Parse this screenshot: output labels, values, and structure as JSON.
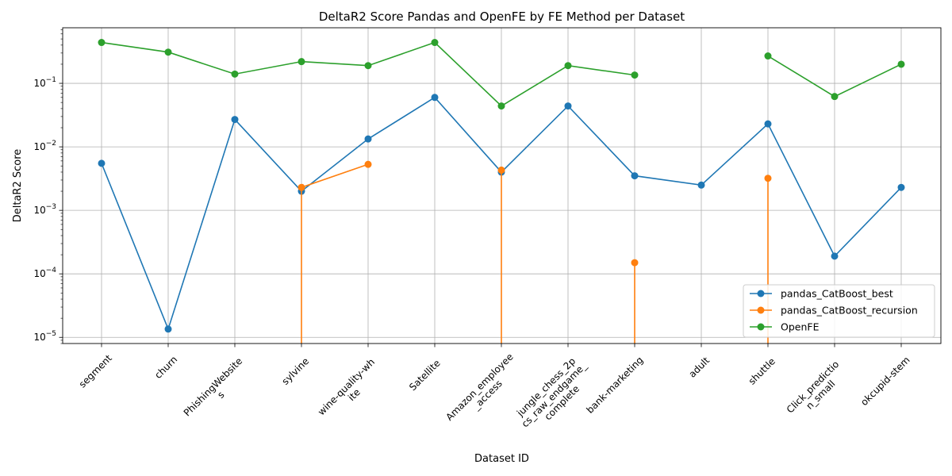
{
  "chart_data": {
    "type": "line",
    "title": "DeltaR2 Score Pandas and OpenFE by FE Method per Dataset",
    "xlabel": "Dataset ID",
    "ylabel": "DeltaR2 Score",
    "yscale": "log",
    "ylim": [
      8e-06,
      0.75
    ],
    "y_ticks": [
      {
        "value": 1e-05,
        "mantissa": "10",
        "exp": "−5"
      },
      {
        "value": 0.0001,
        "mantissa": "10",
        "exp": "−4"
      },
      {
        "value": 0.001,
        "mantissa": "10",
        "exp": "−3"
      },
      {
        "value": 0.01,
        "mantissa": "10",
        "exp": "−2"
      },
      {
        "value": 0.1,
        "mantissa": "10",
        "exp": "−1"
      }
    ],
    "grid": true,
    "legend_position": "lower-right",
    "categories": [
      [
        "segment"
      ],
      [
        "churn"
      ],
      [
        "PhishingWebsite",
        "s"
      ],
      [
        "sylvine"
      ],
      [
        "wine-quality-wh",
        "ite"
      ],
      [
        "Satellite"
      ],
      [
        "Amazon_employee",
        "_access"
      ],
      [
        "jungle_chess_2p",
        "cs_raw_endgame_",
        "complete"
      ],
      [
        "bank-marketing"
      ],
      [
        "adult"
      ],
      [
        "shuttle"
      ],
      [
        "Click_predictio",
        "n_small"
      ],
      [
        "okcupid-stem"
      ]
    ],
    "series": [
      {
        "name": "pandas_CatBoost_best",
        "color": "#1f77b4",
        "values": [
          0.0055,
          1.35e-05,
          0.027,
          0.002,
          0.0133,
          0.06,
          0.004,
          0.044,
          0.0035,
          0.0025,
          0.023,
          0.00019,
          0.0023
        ]
      },
      {
        "name": "pandas_CatBoost_recursion",
        "color": "#ff7f0e",
        "values": [
          null,
          null,
          null,
          0.0023,
          0.0053,
          null,
          0.0043,
          null,
          0.00015,
          null,
          0.0032,
          null,
          null
        ],
        "drops_to_zero_at": [
          3,
          6,
          8,
          10
        ]
      },
      {
        "name": "OpenFE",
        "color": "#2ca02c",
        "values": [
          0.44,
          0.31,
          0.14,
          0.22,
          0.19,
          0.44,
          0.044,
          0.19,
          0.135,
          null,
          0.27,
          0.062,
          0.2
        ]
      }
    ]
  }
}
